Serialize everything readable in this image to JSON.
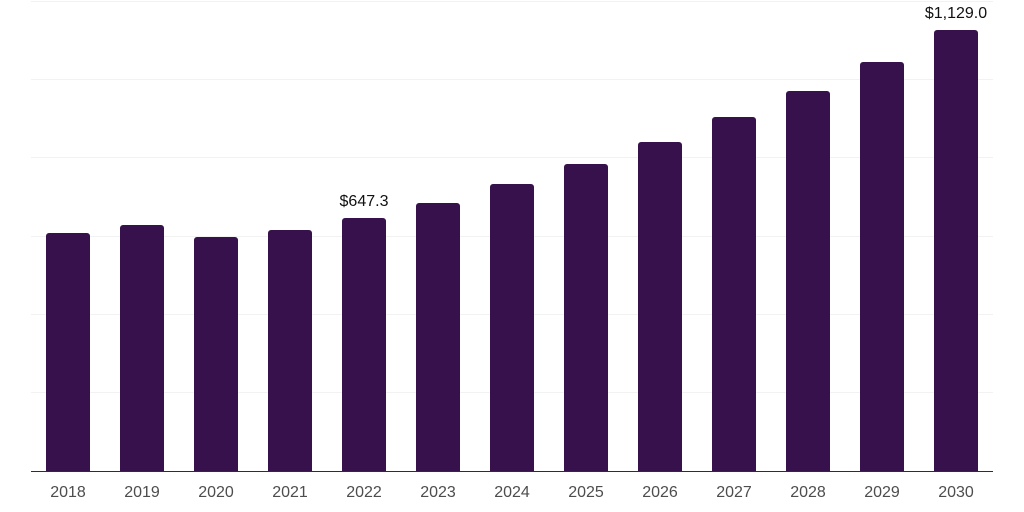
{
  "chart_data": {
    "type": "bar",
    "title": "",
    "xlabel": "",
    "ylabel": "",
    "categories": [
      "2018",
      "2019",
      "2020",
      "2021",
      "2022",
      "2023",
      "2024",
      "2025",
      "2026",
      "2027",
      "2028",
      "2029",
      "2030"
    ],
    "values": [
      608.1,
      629.7,
      598.3,
      617.5,
      647.3,
      685.1,
      734.4,
      785.6,
      840.7,
      906.2,
      972.6,
      1047.8,
      1129.0
    ],
    "value_labels": {
      "2022": "$647.3",
      "2030": "$1,129.0"
    },
    "ylim": [
      0,
      1200
    ],
    "gridline_step": 200,
    "grid": true,
    "y_axis_tick_labels_visible": false,
    "legend": false
  },
  "colors": {
    "bar": "#36114b",
    "gridline": "#f2f2f2",
    "axis_line": "#2e2e2e",
    "x_tick_label": "#4d4d4d",
    "value_label": "#111111",
    "background": "#ffffff"
  }
}
